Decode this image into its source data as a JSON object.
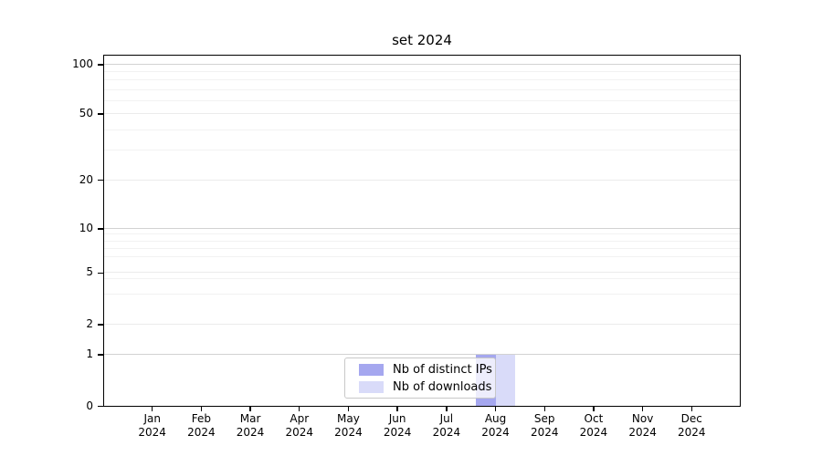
{
  "chart_data": {
    "type": "bar",
    "title": "set 2024",
    "categories": [
      "Jan 2024",
      "Feb 2024",
      "Mar 2024",
      "Apr 2024",
      "May 2024",
      "Jun 2024",
      "Jul 2024",
      "Aug 2024",
      "Sep 2024",
      "Oct 2024",
      "Nov 2024",
      "Dec 2024"
    ],
    "series": [
      {
        "name": "Nb of distinct IPs",
        "color": "#a5a7ef",
        "values": [
          0,
          0,
          0,
          0,
          0,
          0,
          0,
          1,
          0,
          0,
          0,
          0
        ]
      },
      {
        "name": "Nb of downloads",
        "color": "#d9dbf9",
        "values": [
          0,
          0,
          0,
          0,
          0,
          0,
          0,
          1,
          0,
          0,
          0,
          0
        ]
      }
    ],
    "xlabel": "",
    "ylabel": "",
    "yscale": "symlog",
    "ylim": [
      0,
      115
    ],
    "grid": "horizontal",
    "legend_position": "lower center",
    "yticks": {
      "labeled": [
        {
          "value": 0,
          "frac": 0.0
        },
        {
          "value": 1,
          "frac": 0.1463
        },
        {
          "value": 2,
          "frac": 0.2317
        },
        {
          "value": 5,
          "frac": 0.3785
        },
        {
          "value": 10,
          "frac": 0.5036
        },
        {
          "value": 20,
          "frac": 0.6421
        },
        {
          "value": 50,
          "frac": 0.8299
        },
        {
          "value": 100,
          "frac": 0.9704
        }
      ],
      "minor": [
        {
          "value": 3,
          "frac": 0.3167
        },
        {
          "value": 4,
          "frac": 0.3615
        },
        {
          "value": 6,
          "frac": 0.4244
        },
        {
          "value": 7,
          "frac": 0.4482
        },
        {
          "value": 8,
          "frac": 0.4689
        },
        {
          "value": 9,
          "frac": 0.4873
        },
        {
          "value": 30,
          "frac": 0.7263
        },
        {
          "value": 40,
          "frac": 0.7846
        },
        {
          "value": 60,
          "frac": 0.8669
        },
        {
          "value": 70,
          "frac": 0.8982
        },
        {
          "value": 80,
          "frac": 0.9251
        },
        {
          "value": 90,
          "frac": 0.9489
        }
      ]
    },
    "colors": {
      "axis": "#000000",
      "grid_power10": "#d2d2d2",
      "grid_labeled": "#ebebeb",
      "grid_minor": "#f2f2f2",
      "tick_label": "#000000"
    }
  }
}
